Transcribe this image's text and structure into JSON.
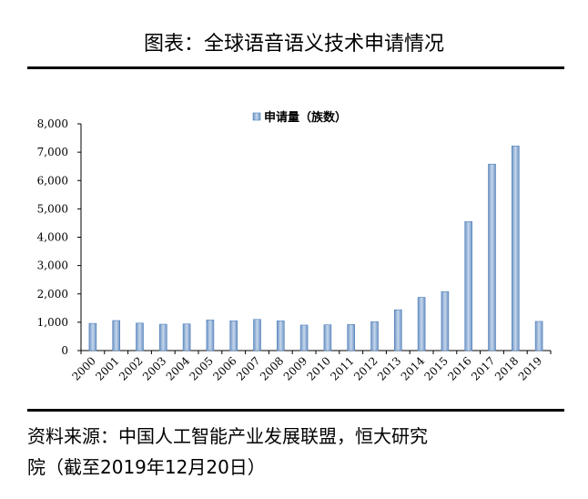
{
  "page": {
    "title": "图表：全球语音语义技术申请情况",
    "source_line1": "资料来源：中国人工智能产业发展联盟，恒大研究",
    "source_line2": "院（截至2019年12月20日）"
  },
  "chart_data": {
    "type": "bar",
    "categories": [
      "2000",
      "2001",
      "2002",
      "2003",
      "2004",
      "2005",
      "2006",
      "2007",
      "2008",
      "2009",
      "2010",
      "2011",
      "2012",
      "2013",
      "2014",
      "2015",
      "2016",
      "2017",
      "2018",
      "2019"
    ],
    "series": [
      {
        "name": "申请量（族数）",
        "values": [
          960,
          1060,
          970,
          930,
          940,
          1080,
          1050,
          1100,
          1050,
          900,
          910,
          920,
          1020,
          1440,
          1880,
          2080,
          4550,
          6580,
          7220,
          1030
        ]
      }
    ],
    "ylim": [
      0,
      8000
    ],
    "yticks": [
      "0",
      "1,000",
      "2,000",
      "3,000",
      "4,000",
      "5,000",
      "6,000",
      "7,000",
      "8,000"
    ],
    "legend": "top-center",
    "grid": false,
    "bar_color": "#9DB9DA",
    "bar_edge": "#4F81BD"
  }
}
